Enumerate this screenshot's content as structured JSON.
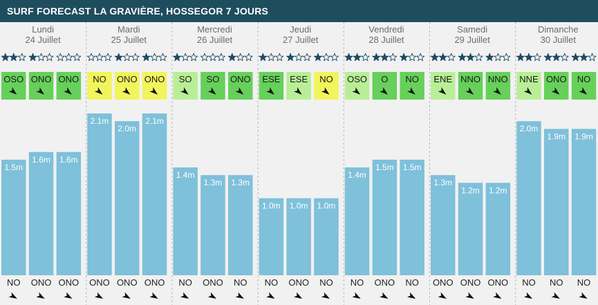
{
  "title": "SURF FORECAST LA GRAVIÈRE, HOSSEGOR 7 JOURS",
  "colors": {
    "header_bg": "#1e4d5e",
    "day_bg": "#f1f1f1",
    "bar": "#7fc0da",
    "star_fill": "#1f4a63",
    "star_empty": "#ffffff",
    "wind_green": "#66d05a",
    "wind_light_green": "#b8ef96",
    "wind_yellow": "#f2f45c",
    "divider": "#b5b5b5"
  },
  "chart_data": {
    "type": "bar",
    "title": "SURF FORECAST LA GRAVIÈRE, HOSSEGOR 7 JOURS",
    "xlabel": "",
    "ylabel": "",
    "ylim": [
      0,
      2.6
    ],
    "grid": false,
    "legend": "none",
    "days": [
      {
        "name": "Lundi",
        "date": "24 Juillet"
      },
      {
        "name": "Mardi",
        "date": "25 Juillet"
      },
      {
        "name": "Mercredi",
        "date": "26 Juillet"
      },
      {
        "name": "Jeudi",
        "date": "27 Juillet"
      },
      {
        "name": "Vendredi",
        "date": "28 Juillet"
      },
      {
        "name": "Samedi",
        "date": "29 Juillet"
      },
      {
        "name": "Dimanche",
        "date": "30 Juillet"
      }
    ],
    "wave_heights": [
      [
        1.5,
        1.6,
        1.6
      ],
      [
        2.1,
        2.0,
        2.1
      ],
      [
        1.4,
        1.3,
        1.3
      ],
      [
        1.0,
        1.0,
        1.0
      ],
      [
        1.4,
        1.5,
        1.5
      ],
      [
        1.3,
        1.2,
        1.2
      ],
      [
        2.0,
        1.9,
        1.9
      ]
    ],
    "height_labels": [
      [
        "1.5m",
        "1.6m",
        "1.6m"
      ],
      [
        "2.1m",
        "2.0m",
        "2.1m"
      ],
      [
        "1.4m",
        "1.3m",
        "1.3m"
      ],
      [
        "1.0m",
        "1.0m",
        "1.0m"
      ],
      [
        "1.4m",
        "1.5m",
        "1.5m"
      ],
      [
        "1.3m",
        "1.2m",
        "1.2m"
      ],
      [
        "2.0m",
        "1.9m",
        "1.9m"
      ]
    ],
    "stars": [
      [
        2,
        1,
        0
      ],
      [
        0,
        1,
        1
      ],
      [
        1,
        0,
        1
      ],
      [
        1,
        1,
        1
      ],
      [
        2,
        2,
        1
      ],
      [
        2,
        2,
        1
      ],
      [
        2,
        2,
        2
      ]
    ],
    "wind": [
      [
        {
          "dir": "OSO",
          "color": "green"
        },
        {
          "dir": "ONO",
          "color": "green"
        },
        {
          "dir": "ONO",
          "color": "green"
        }
      ],
      [
        {
          "dir": "NO",
          "color": "yellow"
        },
        {
          "dir": "ONO",
          "color": "yellow"
        },
        {
          "dir": "ONO",
          "color": "yellow"
        }
      ],
      [
        {
          "dir": "SO",
          "color": "light_green"
        },
        {
          "dir": "SO",
          "color": "green"
        },
        {
          "dir": "ONO",
          "color": "green"
        }
      ],
      [
        {
          "dir": "ESE",
          "color": "green"
        },
        {
          "dir": "ESE",
          "color": "light_green"
        },
        {
          "dir": "NO",
          "color": "yellow"
        }
      ],
      [
        {
          "dir": "OSO",
          "color": "light_green"
        },
        {
          "dir": "O",
          "color": "green"
        },
        {
          "dir": "NO",
          "color": "green"
        }
      ],
      [
        {
          "dir": "ENE",
          "color": "light_green"
        },
        {
          "dir": "NNO",
          "color": "green"
        },
        {
          "dir": "NNO",
          "color": "green"
        }
      ],
      [
        {
          "dir": "NNE",
          "color": "light_green"
        },
        {
          "dir": "ONO",
          "color": "green"
        },
        {
          "dir": "NO",
          "color": "green"
        }
      ]
    ],
    "swell_dirs": [
      [
        "NO",
        "ONO",
        "ONO"
      ],
      [
        "ONO",
        "ONO",
        "ONO"
      ],
      [
        "NO",
        "ONO",
        "NO"
      ],
      [
        "NO",
        "ONO",
        "NO"
      ],
      [
        "NO",
        "ONO",
        "NO"
      ],
      [
        "ONO",
        "ONO",
        "ONO"
      ],
      [
        "NO",
        "NO",
        "NO"
      ]
    ]
  }
}
